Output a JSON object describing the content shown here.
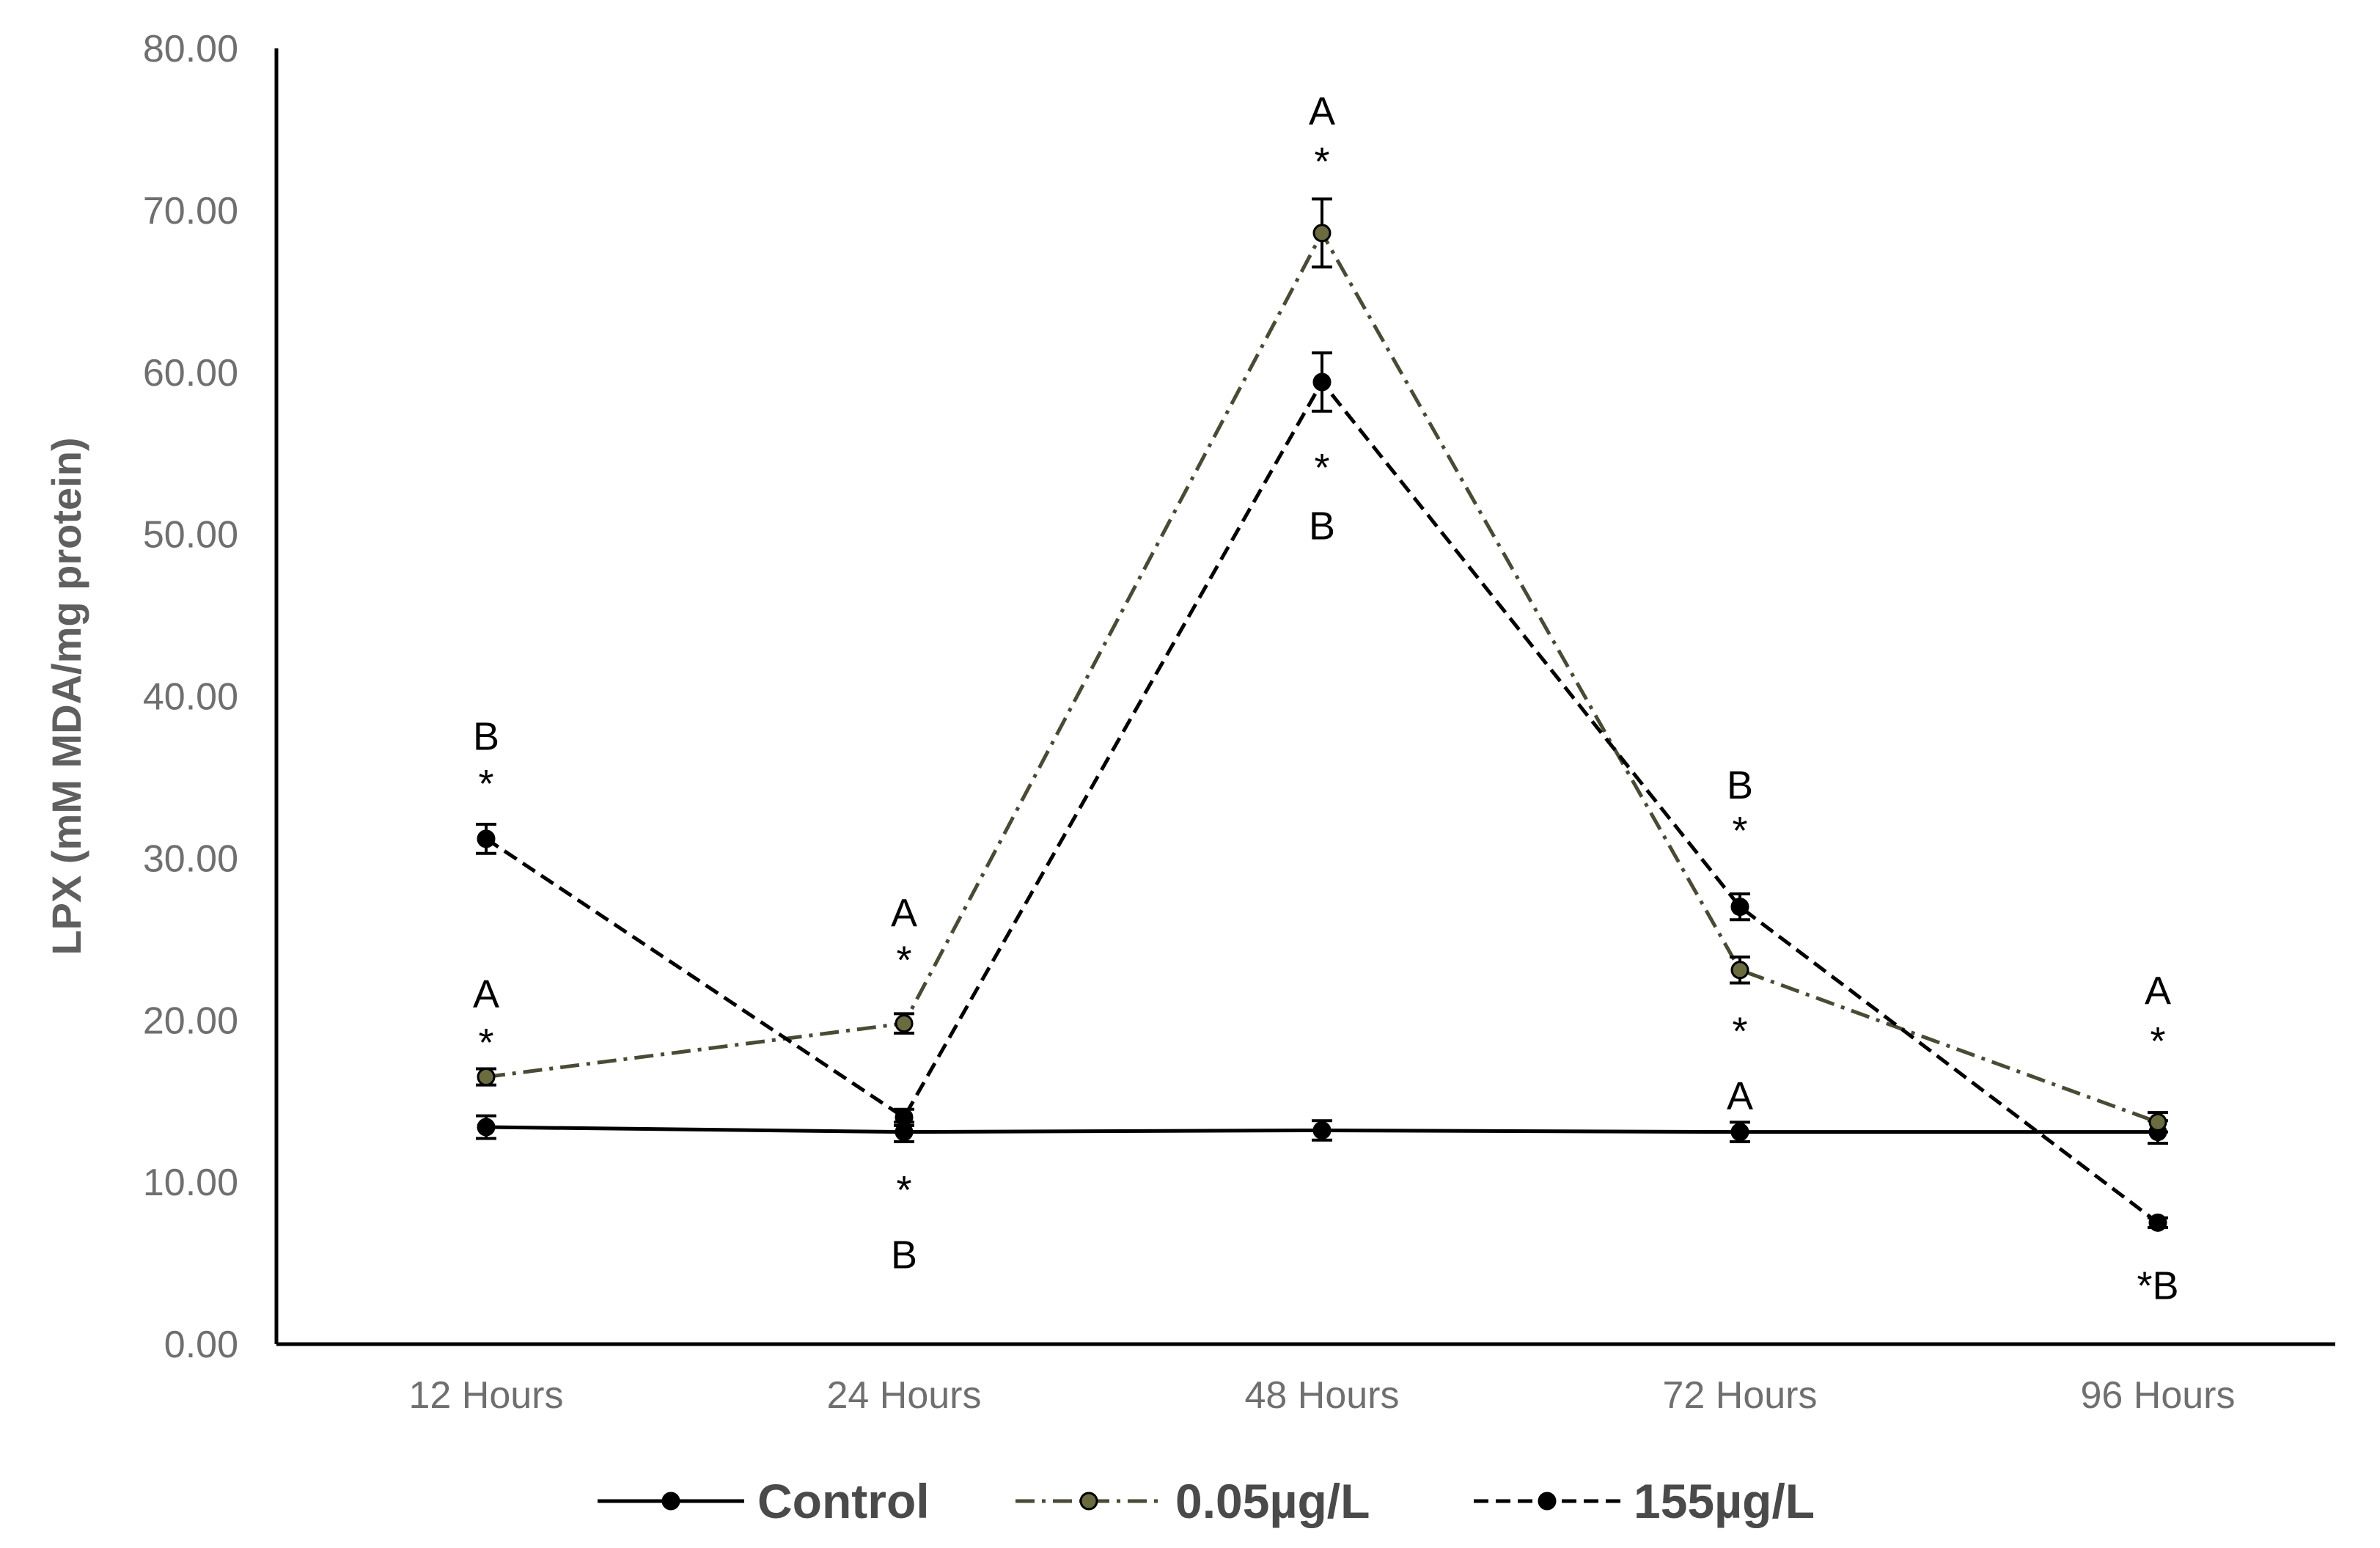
{
  "chart_data": {
    "type": "line",
    "xlabel": "",
    "ylabel": "LPX (mM MDA/mg protein)",
    "ylim": [
      0,
      80
    ],
    "yticks": [
      "0.00",
      "10.00",
      "20.00",
      "30.00",
      "40.00",
      "50.00",
      "60.00",
      "70.00",
      "80.00"
    ],
    "categories": [
      "12 Hours",
      "24 Hours",
      "48 Hours",
      "72 Hours",
      "96 Hours"
    ],
    "grid": false,
    "legend_position": "bottom",
    "series": [
      {
        "name": "Control",
        "values": [
          13.4,
          13.1,
          13.2,
          13.1,
          13.1
        ],
        "errors": [
          0.7,
          0.6,
          0.6,
          0.6,
          0.7
        ],
        "color": "#000000",
        "marker_fill": "#000000",
        "line_style": "solid"
      },
      {
        "name": "0.05µg/L",
        "values": [
          16.5,
          19.8,
          68.6,
          23.1,
          13.7
        ],
        "errors": [
          0.5,
          0.6,
          2.1,
          0.8,
          0.6
        ],
        "color": "#4a4a35",
        "marker_fill": "#6b6b40",
        "line_style": "dashdot"
      },
      {
        "name": "155µg/L",
        "values": [
          31.2,
          14.0,
          59.4,
          27.0,
          7.5
        ],
        "errors": [
          0.9,
          0.5,
          1.8,
          0.8,
          0.3
        ],
        "color": "#000000",
        "marker_fill": "#000000",
        "line_style": "dashed"
      }
    ],
    "annotations": [
      {
        "category_index": 0,
        "y": 37.5,
        "text": "B"
      },
      {
        "category_index": 0,
        "y": 34.6,
        "text": "*"
      },
      {
        "category_index": 0,
        "y": 21.6,
        "text": "A"
      },
      {
        "category_index": 0,
        "y": 18.6,
        "text": "*"
      },
      {
        "category_index": 1,
        "y": 26.6,
        "text": "A"
      },
      {
        "category_index": 1,
        "y": 23.7,
        "text": "*"
      },
      {
        "category_index": 1,
        "y": 9.5,
        "text": "*"
      },
      {
        "category_index": 1,
        "y": 5.5,
        "text": "B"
      },
      {
        "category_index": 2,
        "y": 76.1,
        "text": "A"
      },
      {
        "category_index": 2,
        "y": 73.0,
        "text": "*"
      },
      {
        "category_index": 2,
        "y": 54.1,
        "text": "*"
      },
      {
        "category_index": 2,
        "y": 50.5,
        "text": "B"
      },
      {
        "category_index": 3,
        "y": 34.5,
        "text": "B"
      },
      {
        "category_index": 3,
        "y": 31.7,
        "text": "*"
      },
      {
        "category_index": 3,
        "y": 19.3,
        "text": "*"
      },
      {
        "category_index": 3,
        "y": 15.3,
        "text": "A"
      },
      {
        "category_index": 4,
        "y": 21.8,
        "text": "A"
      },
      {
        "category_index": 4,
        "y": 18.7,
        "text": "*"
      },
      {
        "category_index": 4,
        "y": 3.6,
        "text": "*B"
      }
    ]
  }
}
